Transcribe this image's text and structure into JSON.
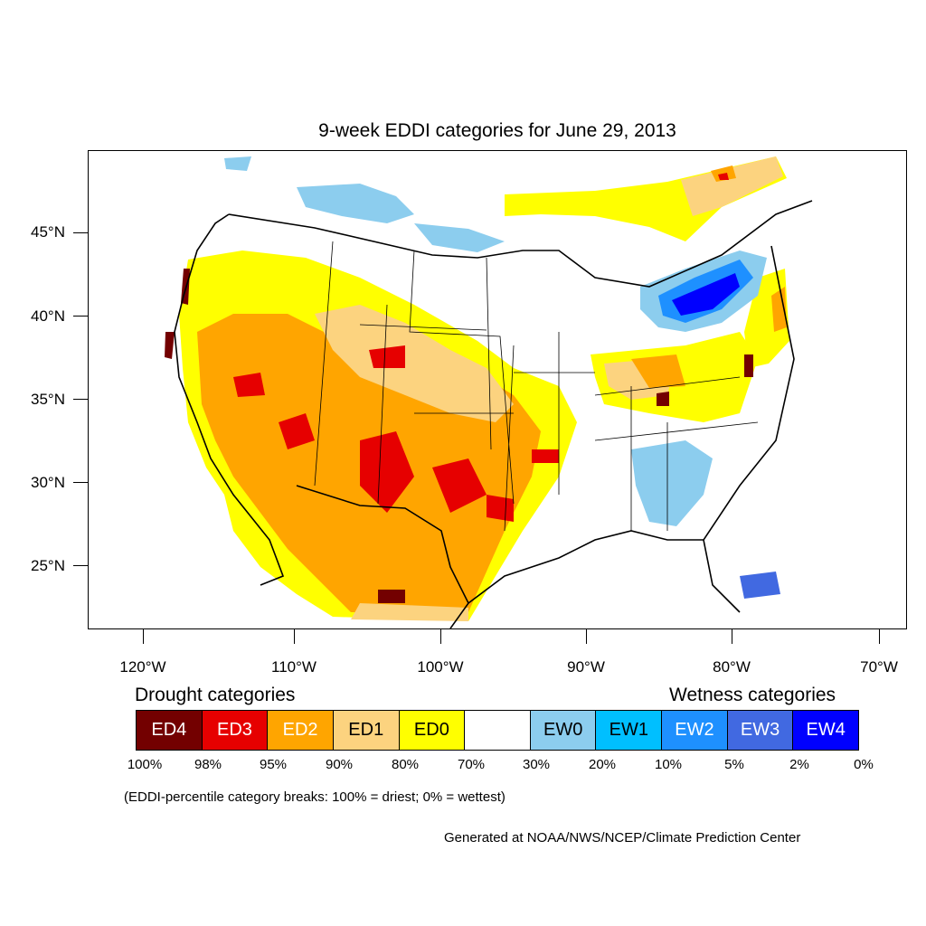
{
  "title": "9-week EDDI categories for June 29, 2013",
  "lat_labels": [
    "45°N",
    "40°N",
    "35°N",
    "30°N",
    "25°N"
  ],
  "lon_labels": [
    "120°W",
    "110°W",
    "100°W",
    "90°W",
    "80°W",
    "70°W"
  ],
  "legend": {
    "drought_heading": "Drought categories",
    "wetness_heading": "Wetness categories",
    "categories": [
      {
        "label": "ED4",
        "color": "#730000",
        "text_color": "#ffffff"
      },
      {
        "label": "ED3",
        "color": "#e60000",
        "text_color": "#ffffff"
      },
      {
        "label": "ED2",
        "color": "#ffa500",
        "text_color": "#ffffff"
      },
      {
        "label": "ED1",
        "color": "#fcd37f",
        "text_color": "#000000"
      },
      {
        "label": "ED0",
        "color": "#ffff00",
        "text_color": "#000000"
      },
      {
        "label": "",
        "color": "#ffffff",
        "text_color": "#000000"
      },
      {
        "label": "EW0",
        "color": "#8ccdee",
        "text_color": "#000000"
      },
      {
        "label": "EW1",
        "color": "#00bfff",
        "text_color": "#000000"
      },
      {
        "label": "EW2",
        "color": "#1e90ff",
        "text_color": "#ffffff"
      },
      {
        "label": "EW3",
        "color": "#4169e1",
        "text_color": "#ffffff"
      },
      {
        "label": "EW4",
        "color": "#0000ff",
        "text_color": "#ffffff"
      }
    ],
    "percentiles": [
      "100%",
      "98%",
      "95%",
      "90%",
      "80%",
      "70%",
      "30%",
      "20%",
      "10%",
      "5%",
      "2%",
      "0%"
    ],
    "note": "(EDDI-percentile category breaks: 100% = driest; 0% = wettest)"
  },
  "credit": "Generated at NOAA/NWS/NCEP/Climate Prediction Center"
}
